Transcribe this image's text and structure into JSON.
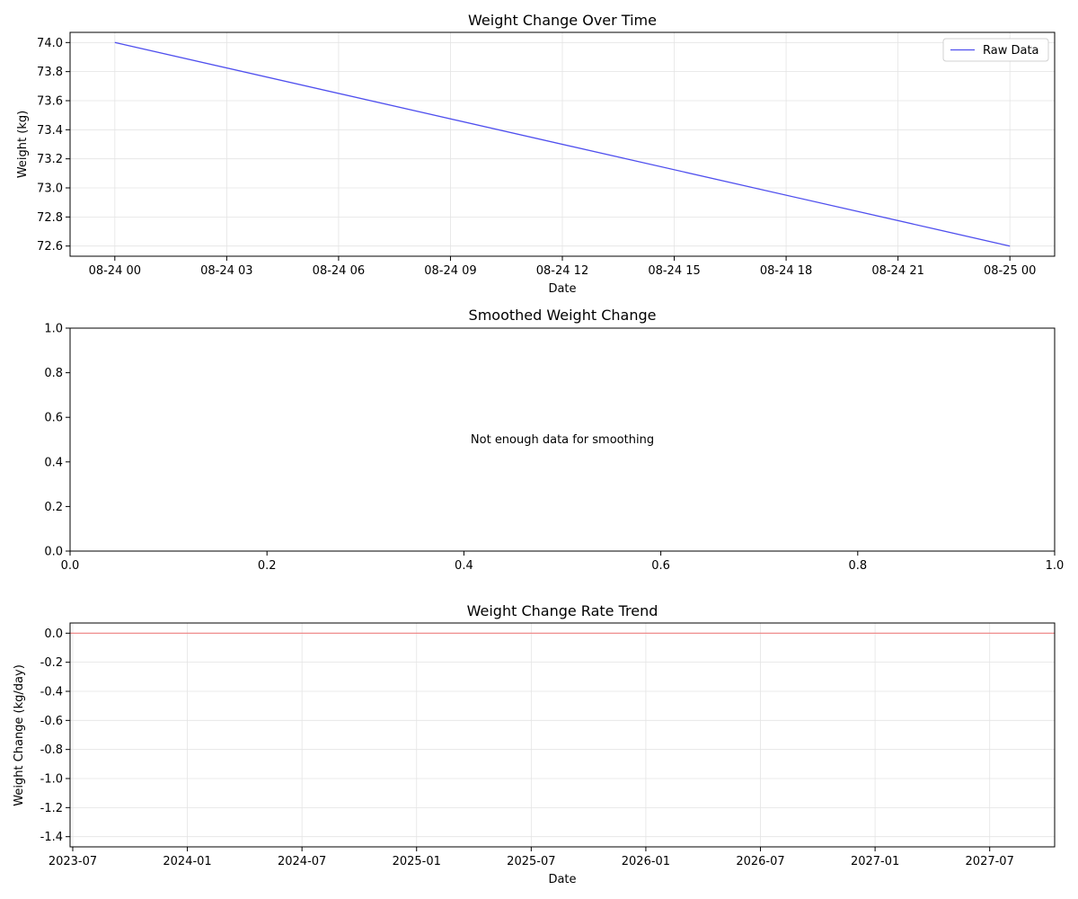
{
  "chart_data": [
    {
      "type": "line",
      "title": "Weight Change Over Time",
      "xlabel": "Date",
      "ylabel": "Weight (kg)",
      "x_ticks": [
        "08-24 00",
        "08-24 03",
        "08-24 06",
        "08-24 09",
        "08-24 12",
        "08-24 15",
        "08-24 18",
        "08-24 21",
        "08-25 00"
      ],
      "y_ticks": [
        "72.6",
        "72.8",
        "73.0",
        "73.2",
        "73.4",
        "73.6",
        "73.8",
        "74.0"
      ],
      "xlim_hours": [
        -1.2,
        25.2
      ],
      "ylim": [
        72.53,
        74.07
      ],
      "grid": true,
      "legend": "top-right",
      "series": [
        {
          "name": "Raw Data",
          "color": "#4f4fee",
          "x_hours": [
            0,
            24
          ],
          "values": [
            74.0,
            72.6
          ]
        }
      ]
    },
    {
      "type": "line",
      "title": "Smoothed Weight Change",
      "x_ticks": [
        "0.0",
        "0.2",
        "0.4",
        "0.6",
        "0.8",
        "1.0"
      ],
      "y_ticks": [
        "0.0",
        "0.2",
        "0.4",
        "0.6",
        "0.8",
        "1.0"
      ],
      "xlim": [
        0,
        1
      ],
      "ylim": [
        0,
        1
      ],
      "grid": false,
      "annotation": "Not enough data for smoothing"
    },
    {
      "type": "line",
      "title": "Weight Change Rate Trend",
      "xlabel": "Date",
      "ylabel": "Weight Change (kg/day)",
      "x_ticks": [
        "2023-07",
        "2024-01",
        "2024-07",
        "2025-01",
        "2025-07",
        "2026-01",
        "2026-07",
        "2027-01",
        "2027-07"
      ],
      "y_ticks": [
        "-1.4",
        "-1.2",
        "-1.0",
        "-0.8",
        "-0.6",
        "-0.4",
        "-0.2",
        "0.0"
      ],
      "ylim": [
        -1.47,
        0.07
      ],
      "grid": true,
      "reference_line": {
        "y": 0,
        "color": "#f08080"
      }
    }
  ]
}
